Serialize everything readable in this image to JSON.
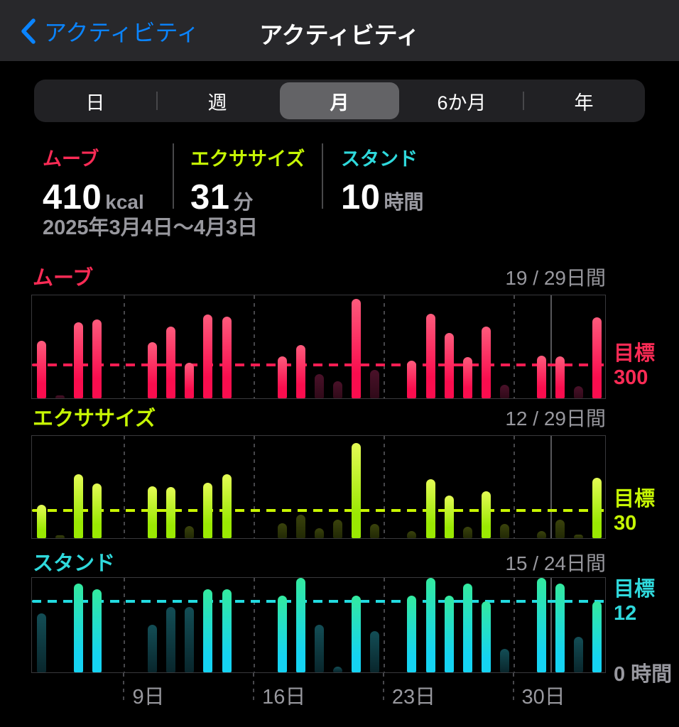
{
  "nav": {
    "back_label": "アクティビティ",
    "title": "アクティビティ"
  },
  "tabs": {
    "items": [
      {
        "label": "日"
      },
      {
        "label": "週"
      },
      {
        "label": "月"
      },
      {
        "label": "6か月"
      },
      {
        "label": "年"
      }
    ],
    "selected_index": 2
  },
  "summary": {
    "move": {
      "label": "ムーブ",
      "value": "410",
      "unit": "kcal"
    },
    "exercise": {
      "label": "エクササイズ",
      "value": "31",
      "unit": "分"
    },
    "stand": {
      "label": "スタンド",
      "value": "10",
      "unit": "時間"
    }
  },
  "period": "2025年3月4日〜4月3日",
  "colors": {
    "move_accent": "#fb2b55",
    "exercise_accent": "#c6f604",
    "stand_accent": "#2fd9dc",
    "muted_text": "#98989e",
    "background": "#000000",
    "nav_background": "#28282b",
    "segment_selected": "#636366",
    "link_blue": "#0a84ff"
  },
  "x_axis": {
    "tick_labels": [
      "9日",
      "16日",
      "23日",
      "30日"
    ],
    "tick_boundary_indices": [
      5,
      12,
      19,
      26
    ],
    "month_boundary_index": 28
  },
  "chart_data": [
    {
      "type": "bar",
      "metric": "move",
      "title": "ムーブ",
      "days_met_label": "19 / 29日間",
      "goal_label": "目標",
      "goal": 300,
      "goal_text": "300",
      "unit": "kcal",
      "ylim": [
        0,
        938
      ],
      "x": [
        "3/4",
        "3/5",
        "3/6",
        "3/7",
        "3/8",
        "3/9",
        "3/10",
        "3/11",
        "3/12",
        "3/13",
        "3/14",
        "3/15",
        "3/16",
        "3/17",
        "3/18",
        "3/19",
        "3/20",
        "3/21",
        "3/22",
        "3/23",
        "3/24",
        "3/25",
        "3/26",
        "3/27",
        "3/28",
        "3/29",
        "3/30",
        "3/31",
        "4/1",
        "4/2",
        "4/3"
      ],
      "values": [
        517,
        26,
        683,
        708,
        0,
        0,
        504,
        644,
        319,
        753,
        734,
        0,
        0,
        376,
        478,
        217,
        153,
        893,
        255,
        0,
        338,
        759,
        587,
        370,
        644,
        121,
        0,
        383,
        376,
        108,
        727
      ]
    },
    {
      "type": "bar",
      "metric": "exercise",
      "title": "エクササイズ",
      "days_met_label": "12 / 29日間",
      "goal_label": "目標",
      "goal": 30,
      "goal_text": "30",
      "unit": "分",
      "ylim": [
        0,
        112
      ],
      "x": [
        "3/4",
        "3/5",
        "3/6",
        "3/7",
        "3/8",
        "3/9",
        "3/10",
        "3/11",
        "3/12",
        "3/13",
        "3/14",
        "3/15",
        "3/16",
        "3/17",
        "3/18",
        "3/19",
        "3/20",
        "3/21",
        "3/22",
        "3/23",
        "3/24",
        "3/25",
        "3/26",
        "3/27",
        "3/28",
        "3/29",
        "3/30",
        "3/31",
        "4/1",
        "4/2",
        "4/3"
      ],
      "values": [
        36,
        3,
        69,
        59,
        0,
        0,
        56,
        55,
        13,
        60,
        69,
        0,
        0,
        16,
        25,
        11,
        20,
        103,
        15,
        0,
        8,
        64,
        46,
        12,
        51,
        15,
        0,
        8,
        20,
        4,
        65
      ]
    },
    {
      "type": "bar",
      "metric": "stand",
      "title": "スタンド",
      "days_met_label": "15 / 24日間",
      "goal_label": "目標",
      "goal": 12,
      "goal_text": "12",
      "unit": "時間",
      "zero_label": "0 時間",
      "ylim": [
        0,
        16.2
      ],
      "x": [
        "3/4",
        "3/5",
        "3/6",
        "3/7",
        "3/8",
        "3/9",
        "3/10",
        "3/11",
        "3/12",
        "3/13",
        "3/14",
        "3/15",
        "3/16",
        "3/17",
        "3/18",
        "3/19",
        "3/20",
        "3/21",
        "3/22",
        "3/23",
        "3/24",
        "3/25",
        "3/26",
        "3/27",
        "3/28",
        "3/29",
        "3/30",
        "3/31",
        "4/1",
        "4/2",
        "4/3"
      ],
      "values": [
        10,
        0,
        15,
        14,
        0,
        0,
        8,
        11,
        11,
        14,
        14,
        0,
        0,
        13,
        16,
        8,
        1,
        13,
        7,
        0,
        13,
        16,
        13,
        15,
        12,
        4,
        0,
        16,
        15,
        6,
        12
      ]
    }
  ]
}
